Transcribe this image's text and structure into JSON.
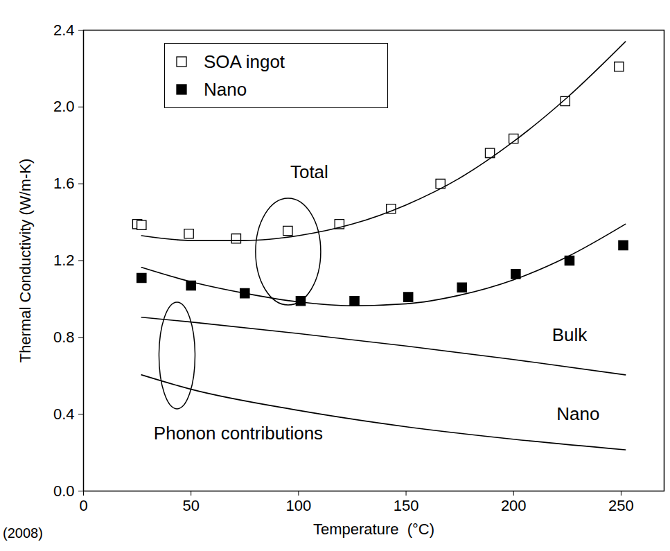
{
  "chart_data": {
    "type": "scatter",
    "x_label": "Temperature  (°C)",
    "y_label": "Thermal Conductivity (W/m-K)",
    "caption": "(2008)",
    "xlim": [
      0,
      270
    ],
    "xticks": [
      0,
      50,
      100,
      150,
      200,
      250
    ],
    "ylim": [
      0,
      2.4
    ],
    "yticks": [
      {
        "value": 0,
        "label": "0.0"
      },
      0.4,
      0.8,
      1.2,
      1.6,
      {
        "value": 2.0,
        "label": "2.0"
      },
      2.4
    ],
    "grid": false,
    "legend": "top-left",
    "series": [
      {
        "name": "SOA ingot",
        "type": "scatter",
        "marker": "square-open",
        "color": "#000000",
        "x": [
          25,
          27,
          49,
          71,
          95,
          119,
          143,
          166,
          189,
          200,
          224,
          249
        ],
        "values": [
          1.39,
          1.385,
          1.34,
          1.315,
          1.355,
          1.39,
          1.47,
          1.6,
          1.76,
          1.835,
          2.03,
          2.21
        ]
      },
      {
        "name": "Nano",
        "type": "scatter",
        "marker": "square-filled",
        "color": "#000000",
        "x": [
          27,
          50,
          75,
          101,
          126,
          151,
          176,
          201,
          226,
          251
        ],
        "values": [
          1.11,
          1.07,
          1.03,
          0.99,
          0.99,
          1.01,
          1.06,
          1.13,
          1.2,
          1.28
        ]
      },
      {
        "type": "line",
        "line_style": "solid",
        "color": "#000000",
        "x": [
          27,
          50,
          75,
          100,
          125,
          150,
          175,
          200,
          225,
          252
        ],
        "values": [
          1.33,
          1.305,
          1.305,
          1.33,
          1.39,
          1.49,
          1.63,
          1.82,
          2.05,
          2.34
        ]
      },
      {
        "type": "line",
        "line_style": "solid",
        "color": "#000000",
        "x": [
          27,
          50,
          75,
          100,
          125,
          150,
          175,
          200,
          225,
          252
        ],
        "values": [
          1.165,
          1.09,
          1.03,
          0.985,
          0.965,
          0.975,
          1.02,
          1.1,
          1.22,
          1.39
        ]
      },
      {
        "type": "line",
        "line_style": "solid",
        "color": "#000000",
        "x": [
          27,
          50,
          100,
          150,
          200,
          252
        ],
        "values": [
          0.905,
          0.88,
          0.82,
          0.755,
          0.685,
          0.605
        ]
      },
      {
        "type": "line",
        "line_style": "solid",
        "color": "#000000",
        "x": [
          27,
          50,
          100,
          150,
          200,
          252
        ],
        "values": [
          0.605,
          0.53,
          0.42,
          0.335,
          0.27,
          0.215
        ]
      }
    ],
    "annotations": [
      {
        "text": "Total",
        "x": 105,
        "y": 1.66
      },
      {
        "text": "Phonon contributions",
        "x": 72,
        "y": 0.3
      },
      {
        "text": "Bulk",
        "x": 226,
        "y": 0.81
      },
      {
        "text": "Nano",
        "x": 230,
        "y": 0.4
      }
    ]
  }
}
